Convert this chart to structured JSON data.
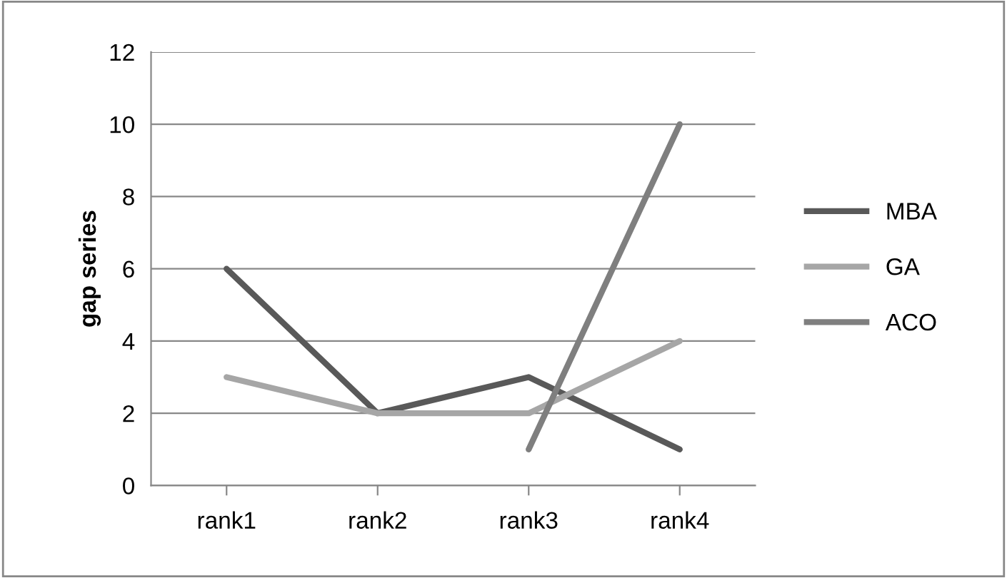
{
  "chart_data": {
    "type": "line",
    "ylabel": "gap series",
    "categories": [
      "rank1",
      "rank2",
      "rank3",
      "rank4"
    ],
    "series": [
      {
        "name": "MBA",
        "color": "#595959",
        "values": [
          6,
          2,
          3,
          1
        ]
      },
      {
        "name": "GA",
        "color": "#a6a6a6",
        "values": [
          3,
          2,
          2,
          4
        ]
      },
      {
        "name": "ACO",
        "color": "#7f7f7f",
        "values": [
          null,
          null,
          1,
          10
        ]
      }
    ],
    "ylim": [
      0,
      12
    ],
    "yticks": [
      0,
      2,
      4,
      6,
      8,
      10,
      12
    ],
    "grid": "y",
    "legend": "right",
    "marker": "none",
    "line_style": "solid"
  }
}
